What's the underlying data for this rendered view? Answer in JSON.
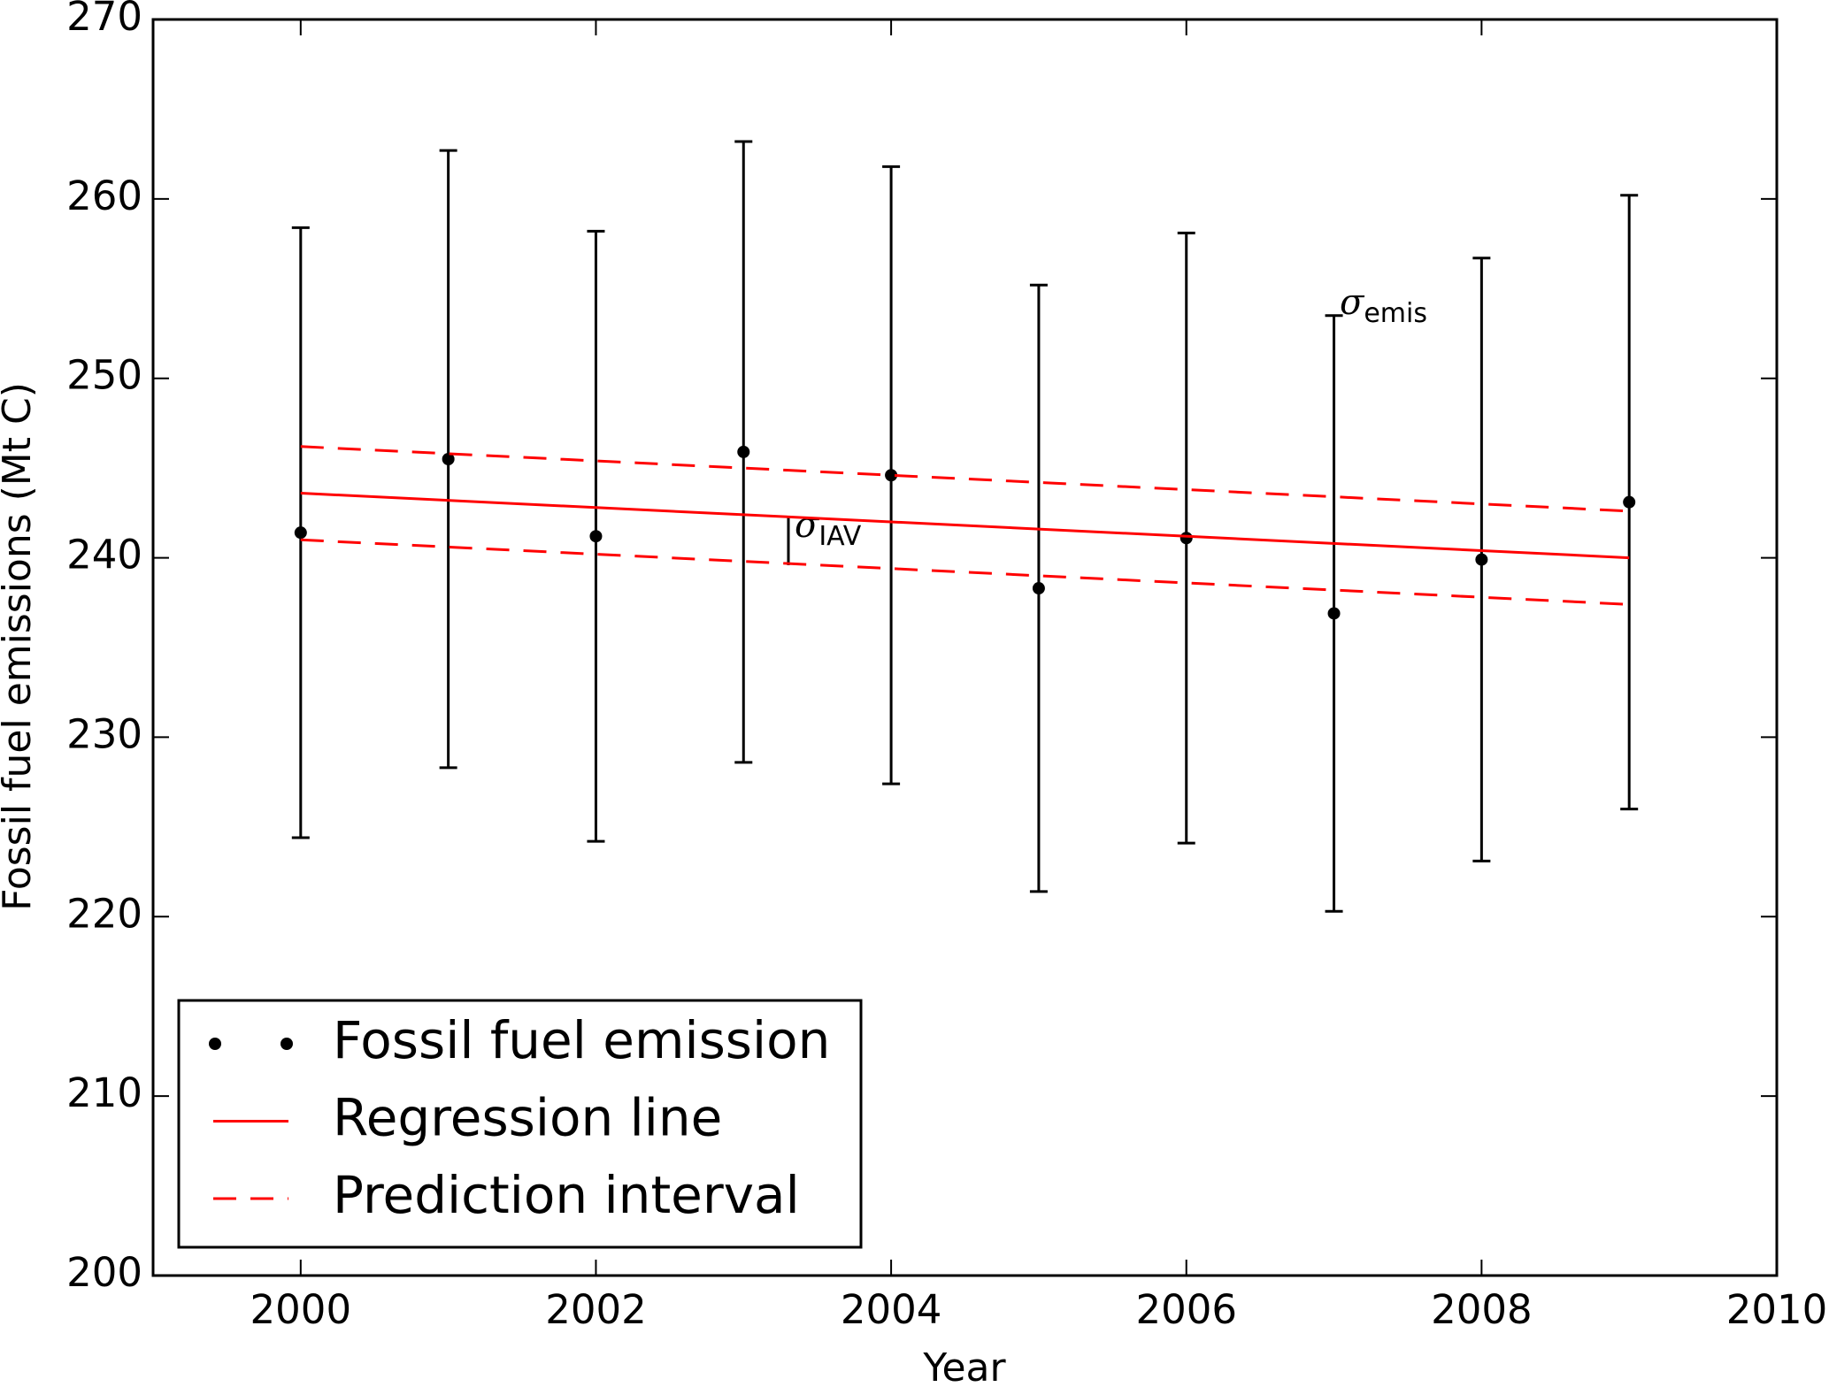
{
  "chart_data": {
    "type": "errorbar",
    "xlabel": "Year",
    "ylabel": "Fossil fuel emissions (Mt C)",
    "xlim": [
      1999,
      2010
    ],
    "ylim": [
      200,
      270
    ],
    "xticks": [
      2000,
      2002,
      2004,
      2006,
      2008,
      2010
    ],
    "yticks": [
      200,
      210,
      220,
      230,
      240,
      250,
      260,
      270
    ],
    "legend": "lower left",
    "series": [
      {
        "name": "Fossil fuel emission",
        "color": "#000000",
        "style": "points",
        "x": [
          2000,
          2001,
          2002,
          2003,
          2004,
          2005,
          2006,
          2007,
          2008,
          2009
        ],
        "values": [
          241.4,
          245.5,
          241.2,
          245.9,
          244.6,
          238.3,
          241.1,
          236.9,
          239.9,
          243.1
        ],
        "errors": [
          17.0,
          17.2,
          17.0,
          17.3,
          17.2,
          16.9,
          17.0,
          16.6,
          16.8,
          17.1
        ]
      },
      {
        "name": "Regression line",
        "color": "#ff0000",
        "style": "solid",
        "x": [
          2000,
          2009
        ],
        "values": [
          243.6,
          240.0
        ]
      },
      {
        "name": "Prediction interval",
        "color": "#ff0000",
        "style": "dashed",
        "x": [
          2000,
          2009
        ],
        "upper": [
          246.2,
          242.6
        ],
        "lower": [
          241.0,
          237.4
        ]
      }
    ],
    "annotations": [
      {
        "text": "σ",
        "subscript": "IAV"
      },
      {
        "text": "σ",
        "subscript": "emis"
      }
    ]
  }
}
